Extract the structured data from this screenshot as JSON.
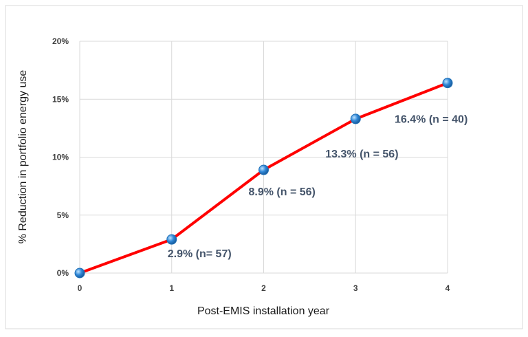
{
  "colors": {
    "line": "#ff0000",
    "marker": "#2e86d6",
    "label": "#44546a",
    "grid": "#d9d9d9"
  },
  "chart_data": {
    "type": "line",
    "title": "",
    "xlabel": "Post-EMIS installation year",
    "ylabel": "% Reduction in portfolio energy use",
    "x": [
      0,
      1,
      2,
      3,
      4
    ],
    "xticks": [
      "0",
      "1",
      "2",
      "3",
      "4"
    ],
    "yticks": [
      "0%",
      "5%",
      "10%",
      "15%",
      "20%"
    ],
    "ylim": [
      0,
      20
    ],
    "xlim": [
      0,
      4
    ],
    "grid": true,
    "legend": false,
    "series": [
      {
        "values": [
          0,
          2.9,
          8.9,
          13.3,
          16.4
        ]
      }
    ],
    "data_labels": [
      "",
      "2.9%  (n= 57)",
      "8.9% (n = 56)",
      "13.3% (n = 56)",
      "16.4% (n = 40)"
    ]
  }
}
